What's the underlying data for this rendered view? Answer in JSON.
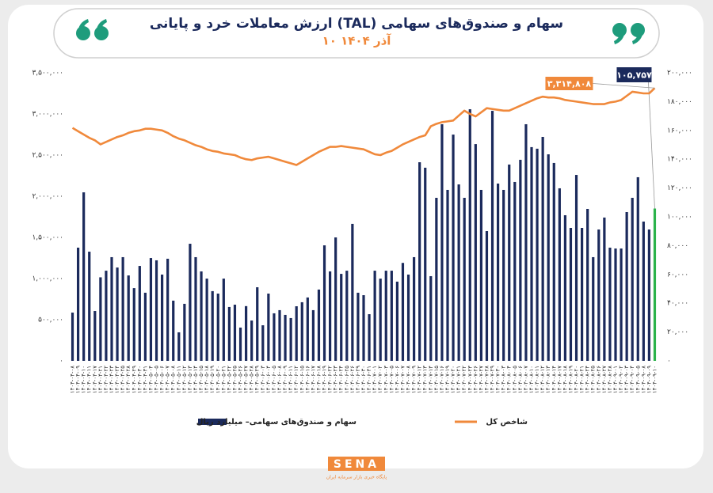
{
  "chart_data": {
    "type": "bar-line",
    "title": "ارزش معاملات خرد و پایانی (TAL) سهام و صندوق‌های سهامی",
    "subtitle": "۱۰ آذر ۱۴۰۴",
    "categories": [
      "۱۴۰۴-۰۴-۰۸",
      "۱۴۰۴-۰۴-۰۹",
      "۱۴۰۴-۰۴-۱۰",
      "۱۴۰۴-۰۴-۱۱",
      "۱۴۰۴-۰۴-۱۷",
      "۱۴۰۴-۰۴-۲۱",
      "۱۴۰۴-۰۴-۲۲",
      "۱۴۰۴-۰۴-۲۳",
      "۱۴۰۴-۰۴-۲۴",
      "۱۴۰۴-۰۴-۲۵",
      "۱۴۰۴-۰۴-۲۸",
      "۱۴۰۴-۰۴-۲۹",
      "۱۴۰۴-۰۴-۳۰",
      "۱۴۰۴-۰۴-۳۱",
      "۱۴۰۴-۰۵-۰۴",
      "۱۴۰۴-۰۵-۰۵",
      "۱۴۰۴-۰۵-۰۶",
      "۱۴۰۴-۰۵-۰۷",
      "۱۴۰۴-۰۵-۰۸",
      "۱۴۰۴-۰۵-۱۱",
      "۱۴۰۴-۰۵-۱۲",
      "۱۴۰۴-۰۵-۱۳",
      "۱۴۰۴-۰۵-۱۴",
      "۱۴۰۴-۰۵-۱۵",
      "۱۴۰۴-۰۵-۱۸",
      "۱۴۰۴-۰۵-۱۹",
      "۱۴۰۴-۰۵-۲۰",
      "۱۴۰۴-۰۵-۲۱",
      "۱۴۰۴-۰۵-۲۲",
      "۱۴۰۴-۰۵-۲۵",
      "۱۴۰۴-۰۵-۲۶",
      "۱۴۰۴-۰۵-۲۷",
      "۱۴۰۴-۰۵-۲۸",
      "۱۴۰۴-۰۵-۲۹",
      "۱۴۰۴-۰۶-۰۳",
      "۱۴۰۴-۰۶-۰۴",
      "۱۴۰۴-۰۶-۰۵",
      "۱۴۰۴-۰۶-۰۸",
      "۱۴۰۴-۰۶-۰۹",
      "۱۴۰۴-۰۶-۱۱",
      "۱۴۰۴-۰۶-۱۲",
      "۱۴۰۴-۰۶-۱۵",
      "۱۴۰۴-۰۶-۱۶",
      "۱۴۰۴-۰۶-۱۷",
      "۱۴۰۴-۰۶-۱۸",
      "۱۴۰۴-۰۶-۱۹",
      "۱۴۰۴-۰۶-۲۲",
      "۱۴۰۴-۰۶-۲۳",
      "۱۴۰۴-۰۶-۲۴",
      "۱۴۰۴-۰۶-۲۵",
      "۱۴۰۴-۰۶-۲۶",
      "۱۴۰۴-۰۶-۲۹",
      "۱۴۰۴-۰۶-۳۰",
      "۱۴۰۴-۰۶-۳۱",
      "۱۴۰۴-۰۷-۰۱",
      "۱۴۰۴-۰۷-۰۲",
      "۱۴۰۴-۰۷-۰۳",
      "۱۴۰۴-۰۷-۰۵",
      "۱۴۰۴-۰۷-۰۶",
      "۱۴۰۴-۰۷-۰۷",
      "۱۴۰۴-۰۷-۰۸",
      "۱۴۰۴-۰۷-۰۹",
      "۱۴۰۴-۰۷-۱۲",
      "۱۴۰۴-۰۷-۱۳",
      "۱۴۰۴-۰۷-۱۴",
      "۱۴۰۴-۰۷-۱۵",
      "۱۴۰۴-۰۷-۱۶",
      "۱۴۰۴-۰۷-۱۹",
      "۱۴۰۴-۰۷-۲۰",
      "۱۴۰۴-۰۷-۲۱",
      "۱۴۰۴-۰۷-۲۲",
      "۱۴۰۴-۰۷-۲۳",
      "۱۴۰۴-۰۷-۲۶",
      "۱۴۰۴-۰۷-۲۷",
      "۱۴۰۴-۰۷-۲۸",
      "۱۴۰۴-۰۷-۲۹",
      "۱۴۰۴-۰۷-۳۰",
      "۱۴۰۴-۰۸-۰۳",
      "۱۴۰۴-۰۸-۰۴",
      "۱۴۰۴-۰۸-۰۵",
      "۱۴۰۴-۰۸-۰۶",
      "۱۴۰۴-۰۸-۰۷",
      "۱۴۰۴-۰۸-۱۰",
      "۱۴۰۴-۰۸-۱۱",
      "۱۴۰۴-۰۸-۱۲",
      "۱۴۰۴-۰۸-۱۳",
      "۱۴۰۴-۰۸-۱۴",
      "۱۴۰۴-۰۸-۱۷",
      "۱۴۰۴-۰۸-۱۸",
      "۱۴۰۴-۰۸-۱۹",
      "۱۴۰۴-۰۸-۲۰",
      "۱۴۰۴-۰۸-۲۱",
      "۱۴۰۴-۰۸-۲۴",
      "۱۴۰۴-۰۸-۲۵",
      "۱۴۰۴-۰۸-۲۶",
      "۱۴۰۴-۰۸-۲۷",
      "۱۴۰۴-۰۸-۲۸",
      "۱۴۰۴-۰۹-۰۱",
      "۱۴۰۴-۰۹-۰۲",
      "۱۴۰۴-۰۹-۰۳",
      "۱۴۰۴-۰۹-۰۴",
      "۱۴۰۴-۰۹-۰۵",
      "۱۴۰۴-۰۹-۰۸",
      "۱۴۰۴-۰۹-۰۹",
      "۱۴۰۴-۰۹-۱۰"
    ],
    "series": [
      {
        "name": "سهام و صندوق‌های سهامی– میلیارد ریال",
        "type": "bar",
        "axis": "y2",
        "color": "#1b2a5c",
        "highlight_color": "#2bb34b",
        "values": [
          33500,
          78600,
          117000,
          75800,
          34600,
          58000,
          62600,
          72000,
          64800,
          72000,
          59300,
          50500,
          65900,
          47300,
          71400,
          69800,
          59900,
          70900,
          41800,
          19800,
          39600,
          81300,
          72000,
          62100,
          57100,
          48400,
          46700,
          57100,
          37400,
          39000,
          23100,
          38000,
          28000,
          51100,
          24700,
          46700,
          33000,
          35200,
          31900,
          29700,
          37900,
          40700,
          44000,
          35200,
          49500,
          80200,
          62100,
          85700,
          60400,
          62600,
          95100,
          47300,
          45600,
          32400,
          62600,
          57100,
          62600,
          62600,
          55000,
          68000,
          59900,
          72000,
          137900,
          134100,
          58800,
          113200,
          164300,
          118700,
          157100,
          122500,
          113200,
          174700,
          150500,
          118700,
          90100,
          173600,
          123100,
          118700,
          136300,
          124200,
          139600,
          164300,
          148400,
          147300,
          155500,
          143400,
          137400,
          119800,
          101100,
          92300,
          129100,
          92300,
          105500,
          72000,
          91200,
          99500,
          78600,
          78000,
          78000,
          103300,
          113200,
          127500,
          96700,
          91200,
          105757
        ],
        "value_labels": {
          "104": "۱۰۵,۷۵۷"
        }
      },
      {
        "name": "شاخص کل",
        "type": "line",
        "color": "#f0893b",
        "values": [
          2830000,
          2790000,
          2750000,
          2710000,
          2680000,
          2630000,
          2660000,
          2690000,
          2720000,
          2740000,
          2770000,
          2790000,
          2800000,
          2820000,
          2820000,
          2810000,
          2800000,
          2770000,
          2730000,
          2700000,
          2680000,
          2650000,
          2620000,
          2600000,
          2570000,
          2550000,
          2540000,
          2520000,
          2510000,
          2500000,
          2470000,
          2450000,
          2440000,
          2460000,
          2470000,
          2480000,
          2460000,
          2440000,
          2420000,
          2400000,
          2380000,
          2420000,
          2460000,
          2500000,
          2540000,
          2570000,
          2600000,
          2600000,
          2610000,
          2600000,
          2590000,
          2580000,
          2570000,
          2540000,
          2510000,
          2500000,
          2530000,
          2550000,
          2590000,
          2630000,
          2660000,
          2690000,
          2720000,
          2740000,
          2850000,
          2880000,
          2900000,
          2910000,
          2920000,
          2980000,
          3040000,
          3000000,
          2970000,
          3020000,
          3070000,
          3060000,
          3050000,
          3040000,
          3040000,
          3070000,
          3100000,
          3130000,
          3160000,
          3190000,
          3210000,
          3200000,
          3200000,
          3190000,
          3170000,
          3160000,
          3150000,
          3140000,
          3130000,
          3120000,
          3120000,
          3120000,
          3140000,
          3150000,
          3170000,
          3220000,
          3270000,
          3260000,
          3250000,
          3250000,
          3314808
        ],
        "value_labels": {
          "104": "۳,۳۱۴,۸۰۸"
        }
      }
    ],
    "ylim": [
      0,
      3500000
    ],
    "yticks": [
      {
        "value": 0,
        "label": "۰"
      },
      {
        "value": 500000,
        "label": "۵۰۰,۰۰۰"
      },
      {
        "value": 1000000,
        "label": "۱,۰۰۰,۰۰۰"
      },
      {
        "value": 1500000,
        "label": "۱,۵۰۰,۰۰۰"
      },
      {
        "value": 2000000,
        "label": "۲,۰۰۰,۰۰۰"
      },
      {
        "value": 2500000,
        "label": "۲,۵۰۰,۰۰۰"
      },
      {
        "value": 3000000,
        "label": "۳,۰۰۰,۰۰۰"
      },
      {
        "value": 3500000,
        "label": "۳,۵۰۰,۰۰۰"
      }
    ],
    "y2lim": [
      0,
      200000
    ],
    "y2ticks": [
      {
        "value": 0,
        "label": "۰"
      },
      {
        "value": 20000,
        "label": "۲۰,۰۰۰"
      },
      {
        "value": 40000,
        "label": "۴۰,۰۰۰"
      },
      {
        "value": 60000,
        "label": "۶۰,۰۰۰"
      },
      {
        "value": 80000,
        "label": "۸۰,۰۰۰"
      },
      {
        "value": 100000,
        "label": "۱۰۰,۰۰۰"
      },
      {
        "value": 120000,
        "label": "۱۲۰,۰۰۰"
      },
      {
        "value": 140000,
        "label": "۱۴۰,۰۰۰"
      },
      {
        "value": 160000,
        "label": "۱۶۰,۰۰۰"
      },
      {
        "value": 180000,
        "label": "۱۸۰,۰۰۰"
      },
      {
        "value": 200000,
        "label": "۲۰۰,۰۰۰"
      }
    ],
    "grid": false,
    "legend": "bottom"
  },
  "footer": {
    "logo": "SENA",
    "tagline": "پایگاه خبری بازار سرمایه ایران"
  }
}
